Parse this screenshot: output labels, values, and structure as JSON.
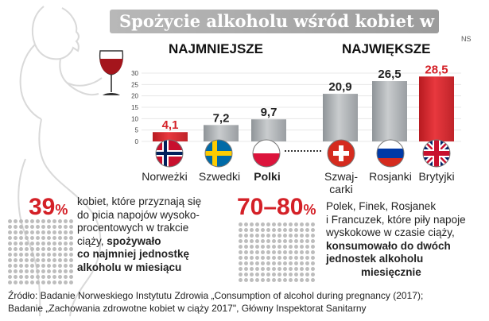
{
  "title": "Spożycie alkoholu wśród kobiet w ciąży",
  "badge": "NS",
  "groups": {
    "smallest": "NAJMNIEJSZE",
    "largest": "NAJWIĘKSZE"
  },
  "chart_data": {
    "type": "bar",
    "categories": [
      "Norweżki",
      "Szwedki",
      "Polki",
      "Szwajcarki",
      "Rosjanki",
      "Brytyjki"
    ],
    "values": [
      4.1,
      7.2,
      9.7,
      20.9,
      26.5,
      28.5
    ],
    "value_labels": [
      "4,1",
      "7,2",
      "9,7",
      "20,9",
      "26,5",
      "28,5"
    ],
    "ylim": [
      0,
      30
    ],
    "yticks": [
      "0",
      "5",
      "10",
      "15",
      "20",
      "25",
      "30"
    ],
    "grid": true,
    "colors": {
      "highlight": "#d42027",
      "normal": "#a9adb1"
    }
  },
  "country_labels": {
    "norway": "Norweżki",
    "sweden": "Szwedki",
    "poland": "Polki",
    "switzerland_line1": "Szwaj-",
    "switzerland_line2": "carki",
    "russia": "Rosjanki",
    "uk": "Brytyjki"
  },
  "stat_left": {
    "number": "39",
    "unit": "%",
    "lines": [
      "kobiet, które przyznają się",
      "do picia napojów wysoko-",
      "procentowych w trakcie"
    ],
    "line4_normal": "ciąży, ",
    "line4_bold": "spożywało",
    "bold_lines": [
      "co najmniej jednostkę",
      "alkoholu w miesiącu"
    ]
  },
  "stat_right": {
    "number": "70–80",
    "unit": "%",
    "lines": [
      "Polek, Finek, Rosjanek",
      "i Francuzek, które piły napoje",
      "wyskokowe w czasie ciąży,"
    ],
    "bold_lines": [
      "konsumowało do dwóch",
      "jednostek alkoholu",
      "miesięcznie"
    ]
  },
  "source": {
    "line1": "Źródło: Badanie Norweskiego Instytutu Zdrowia „Consumption of alcohol during pregnancy (2017);",
    "line2": "Badanie „Zachowania zdrowotne kobiet w ciąży 2017\", Główny Inspektorat Sanitarny"
  }
}
